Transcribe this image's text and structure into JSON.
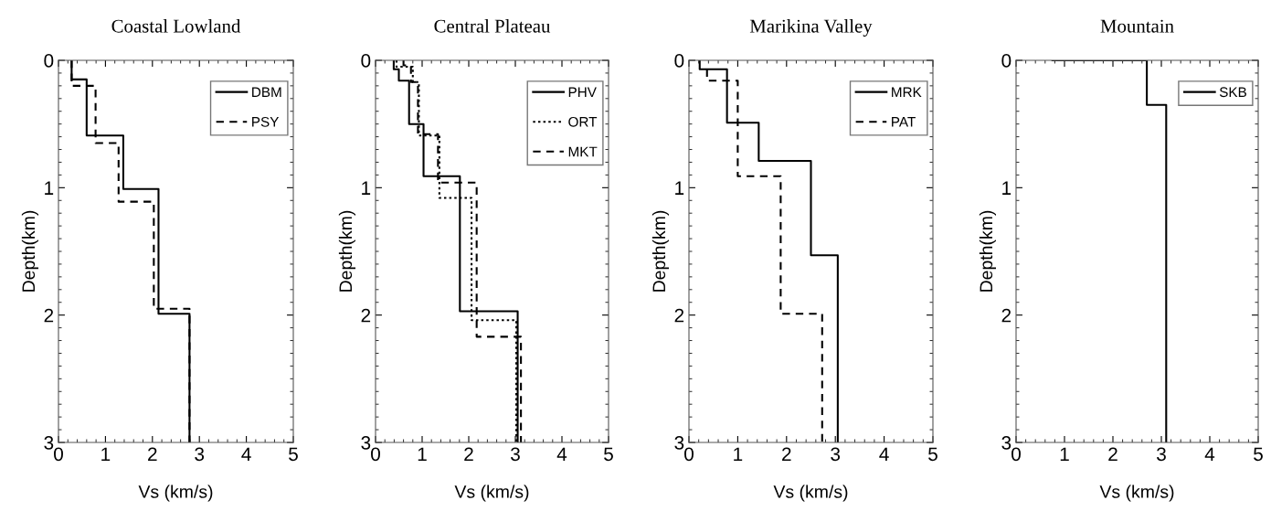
{
  "chart_data": [
    {
      "type": "line",
      "title": "Coastal Lowland",
      "xlabel": "Vs (km/s)",
      "ylabel": "Depth(km)",
      "xlim": [
        0,
        5
      ],
      "ylim": [
        3,
        0
      ],
      "xticks": [
        0,
        1,
        2,
        3,
        4,
        5
      ],
      "yticks": [
        0,
        1,
        2,
        3
      ],
      "grid": false,
      "legend": "top right",
      "series": [
        {
          "name": "DBM",
          "color": "#000000",
          "line_style": "solid",
          "x": [
            0.28,
            0.28,
            0.6,
            0.6,
            1.38,
            1.38,
            2.13,
            2.13,
            2.79,
            2.79
          ],
          "values": [
            0,
            0.15,
            0.15,
            0.59,
            0.59,
            1.01,
            1.01,
            1.99,
            1.99,
            3
          ]
        },
        {
          "name": "PSY",
          "color": "#000000",
          "line_style": "dashed",
          "x": [
            0.28,
            0.28,
            0.79,
            0.79,
            1.28,
            1.28,
            2.03,
            2.03,
            2.79,
            2.79
          ],
          "values": [
            0,
            0.2,
            0.2,
            0.65,
            0.65,
            1.11,
            1.11,
            1.95,
            1.95,
            3
          ]
        }
      ]
    },
    {
      "type": "line",
      "title": "Central Plateau",
      "xlabel": "Vs (km/s)",
      "ylabel": "Depth(km)",
      "xlim": [
        0,
        5
      ],
      "ylim": [
        3,
        0
      ],
      "xticks": [
        0,
        1,
        2,
        3,
        4,
        5
      ],
      "yticks": [
        0,
        1,
        2,
        3
      ],
      "grid": false,
      "legend": "top right",
      "series": [
        {
          "name": "PHV",
          "color": "#000000",
          "line_style": "solid",
          "x": [
            0.39,
            0.39,
            0.5,
            0.5,
            0.72,
            0.72,
            1.03,
            1.03,
            1.81,
            1.81,
            3.05,
            3.05
          ],
          "values": [
            0,
            0.07,
            0.07,
            0.16,
            0.16,
            0.5,
            0.5,
            0.91,
            0.91,
            1.97,
            1.97,
            3
          ]
        },
        {
          "name": "ORT",
          "color": "#000000",
          "line_style": "dotted",
          "x": [
            0.45,
            0.45,
            0.8,
            0.8,
            0.93,
            0.93,
            1.37,
            1.37,
            2.06,
            2.06,
            3.02,
            3.02
          ],
          "values": [
            0,
            0.05,
            0.05,
            0.17,
            0.17,
            0.59,
            0.59,
            1.08,
            1.08,
            2.04,
            2.04,
            3
          ]
        },
        {
          "name": "MKT",
          "color": "#000000",
          "line_style": "dashed",
          "x": [
            0.6,
            0.6,
            0.76,
            0.76,
            0.91,
            0.91,
            1.34,
            1.34,
            2.17,
            2.17,
            3.12,
            3.12
          ],
          "values": [
            0,
            0.04,
            0.04,
            0.17,
            0.17,
            0.58,
            0.58,
            0.96,
            0.96,
            2.17,
            2.17,
            3
          ]
        }
      ]
    },
    {
      "type": "line",
      "title": "Marikina Valley",
      "xlabel": "Vs (km/s)",
      "ylabel": "Depth(km)",
      "xlim": [
        0,
        5
      ],
      "ylim": [
        3,
        0
      ],
      "xticks": [
        0,
        1,
        2,
        3,
        4,
        5
      ],
      "yticks": [
        0,
        1,
        2,
        3
      ],
      "grid": false,
      "legend": "top right",
      "series": [
        {
          "name": "MRK",
          "color": "#000000",
          "line_style": "solid",
          "x": [
            0.22,
            0.22,
            0.78,
            0.78,
            1.43,
            1.43,
            2.5,
            2.5,
            3.05,
            3.05
          ],
          "values": [
            0,
            0.07,
            0.07,
            0.49,
            0.49,
            0.79,
            0.79,
            1.53,
            1.53,
            3
          ]
        },
        {
          "name": "PAT",
          "color": "#000000",
          "line_style": "dashed",
          "x": [
            0.37,
            0.37,
            1.0,
            1.0,
            1.88,
            1.88,
            2.73,
            2.73
          ],
          "values": [
            0.07,
            0.16,
            0.16,
            0.91,
            0.91,
            1.99,
            1.99,
            3
          ]
        }
      ]
    },
    {
      "type": "line",
      "title": "Mountain",
      "xlabel": "Vs (km/s)",
      "ylabel": "Depth(km)",
      "xlim": [
        0,
        5
      ],
      "ylim": [
        3,
        0
      ],
      "xticks": [
        0,
        1,
        2,
        3,
        4,
        5
      ],
      "yticks": [
        0,
        1,
        2,
        3
      ],
      "grid": false,
      "legend": "top right",
      "series": [
        {
          "name": "SKB",
          "color": "#000000",
          "line_style": "solid",
          "x": [
            0.75,
            2.7,
            2.7,
            3.1,
            3.1
          ],
          "values": [
            0,
            0,
            0.35,
            0.35,
            3
          ]
        }
      ]
    }
  ]
}
